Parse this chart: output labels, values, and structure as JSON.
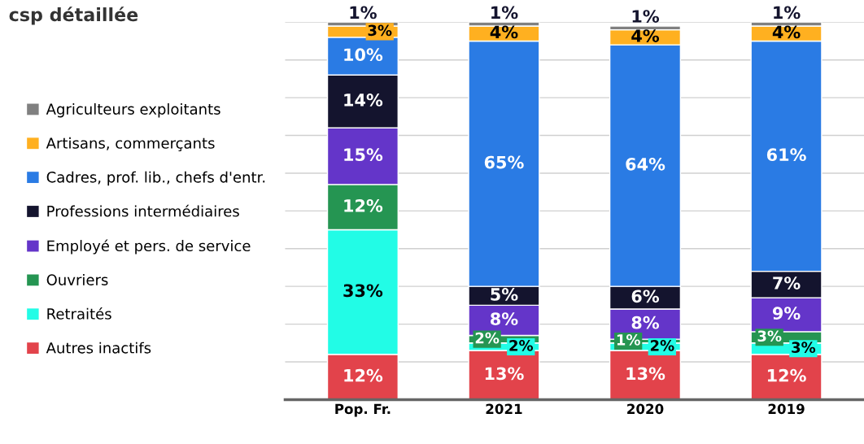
{
  "chart_data": {
    "type": "bar",
    "title": "csp détaillée",
    "stacked": true,
    "data_labels": true,
    "grid": "y",
    "legend": "left",
    "tick_labels": "x",
    "categories": [
      "Pop. Fr.",
      "2021",
      "2020",
      "2019"
    ],
    "ylim": [
      0,
      100
    ],
    "yticks": [
      {
        "value": 0,
        "label": null
      },
      {
        "value": 10,
        "label": null
      },
      {
        "value": 20,
        "label": null
      },
      {
        "value": 30,
        "label": null
      },
      {
        "value": 40,
        "label": null
      },
      {
        "value": 50,
        "label": null
      },
      {
        "value": 60,
        "label": null
      },
      {
        "value": 70,
        "label": null
      },
      {
        "value": 80,
        "label": null
      },
      {
        "value": 90,
        "label": null
      },
      {
        "value": 100,
        "label": null
      }
    ],
    "series": [
      {
        "name": "Autres inactifs",
        "color": "#e2434b",
        "values": [
          12,
          13,
          13,
          12
        ],
        "value_labels": [
          "12%",
          "13%",
          "13%",
          "12%"
        ]
      },
      {
        "name": "Retraités",
        "color": "#22fce6",
        "values": [
          33,
          2,
          2,
          3
        ],
        "value_labels": [
          "33%",
          "2%",
          "2%",
          "3%"
        ]
      },
      {
        "name": "Ouvriers",
        "color": "#259552",
        "values": [
          12,
          2,
          1,
          3
        ],
        "value_labels": [
          "12%",
          "2%",
          "1%",
          "3%"
        ]
      },
      {
        "name": "Employé et pers. de service",
        "color": "#6435c9",
        "values": [
          15,
          8,
          8,
          9
        ],
        "value_labels": [
          "15%",
          "8%",
          "8%",
          "9%"
        ]
      },
      {
        "name": "Professions intermédiaires",
        "color": "#14142e",
        "values": [
          14,
          5,
          6,
          7
        ],
        "value_labels": [
          "14%",
          "5%",
          "6%",
          "7%"
        ]
      },
      {
        "name": "Cadres, prof. lib., chefs d'entr.",
        "color": "#2a7be4",
        "values": [
          10,
          65,
          64,
          61
        ],
        "value_labels": [
          "10%",
          "65%",
          "64%",
          "61%"
        ]
      },
      {
        "name": "Artisans, commerçants",
        "color": "#ffb020",
        "values": [
          3,
          4,
          4,
          4
        ],
        "value_labels": [
          "3%",
          "4%",
          "4%",
          "4%"
        ]
      },
      {
        "name": "Agriculteurs exploitants",
        "color": "#808080",
        "values": [
          1,
          1,
          1,
          1
        ],
        "value_labels": [
          "1%",
          "1%",
          "1%",
          "1%"
        ]
      }
    ]
  }
}
